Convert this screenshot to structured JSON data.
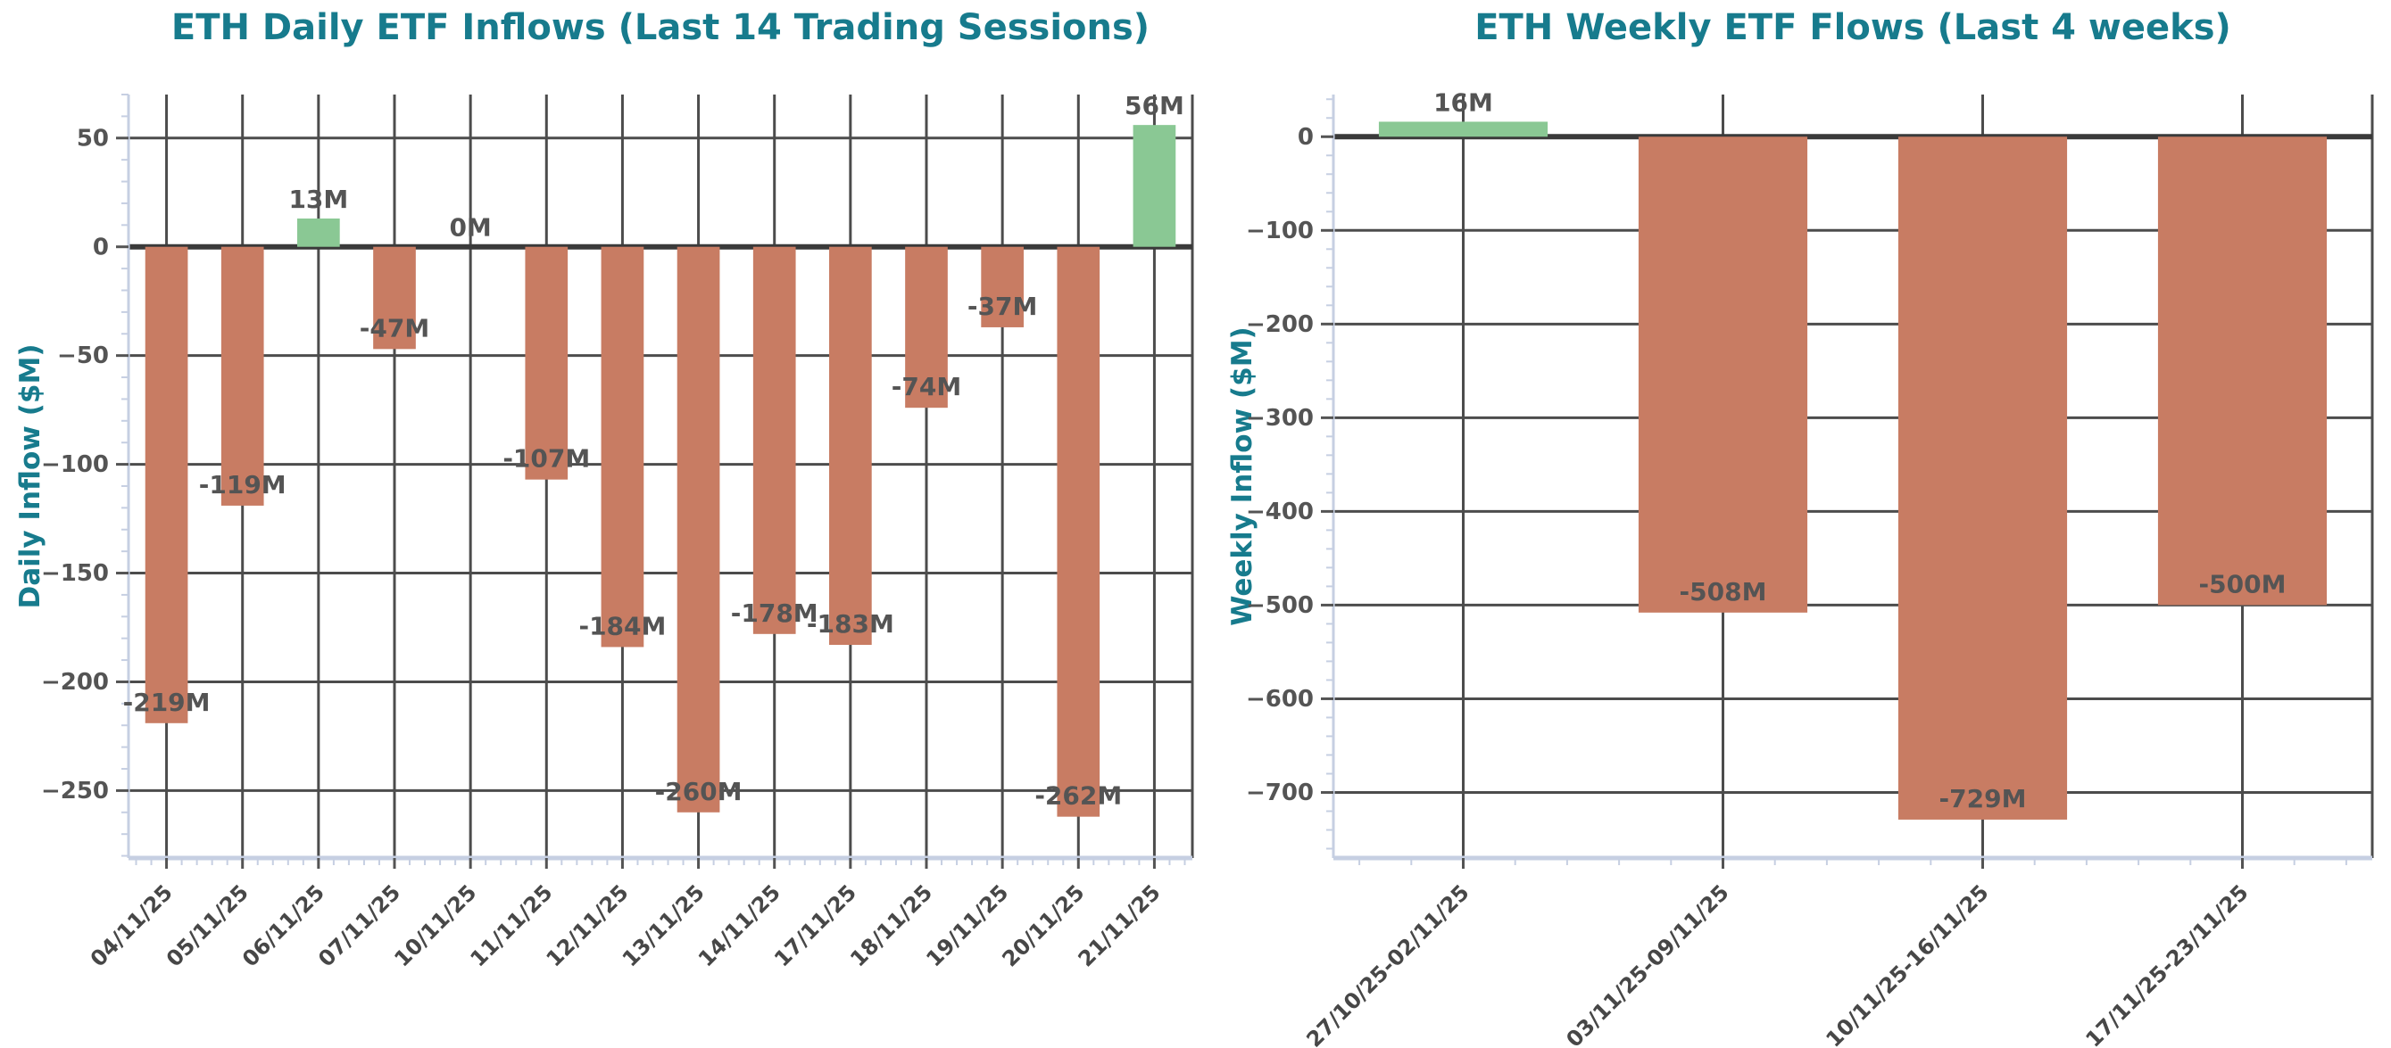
{
  "colors": {
    "background": "#ffffff",
    "title": "#177B8D",
    "axis_label": "#177B8D",
    "tick_label": "#545454",
    "data_label": "#545454",
    "x_tick_label": "#474747",
    "grid": "#4c4c4c",
    "zero_line": "#3a3a3a",
    "spine": "#c6cfe2",
    "minor_tick": "#c6cfe2",
    "positive_bar": "#8AC894",
    "negative_bar": "#C87C63"
  },
  "chart_data": [
    {
      "type": "bar",
      "title": "ETH Daily ETF Inflows (Last 14 Trading Sessions)",
      "ylabel": "Daily Inflow ($M)",
      "xlabel": "",
      "legend": "none",
      "grid": "on",
      "categories": [
        "04/11/25",
        "05/11/25",
        "06/11/25",
        "07/11/25",
        "10/11/25",
        "11/11/25",
        "12/11/25",
        "13/11/25",
        "14/11/25",
        "17/11/25",
        "18/11/25",
        "19/11/25",
        "20/11/25",
        "21/11/25"
      ],
      "values": [
        -219,
        -119,
        13,
        -47,
        0,
        -107,
        -184,
        -260,
        -178,
        -183,
        -74,
        -37,
        -262,
        56
      ],
      "bar_labels": [
        "-219M",
        "-119M",
        "13M",
        "-47M",
        "0M",
        "-107M",
        "-184M",
        "-260M",
        "-178M",
        "-183M",
        "-74M",
        "-37M",
        "-262M",
        "56M"
      ],
      "ylim": [
        70,
        -281
      ],
      "ytick_values": [
        50,
        0,
        -50,
        -100,
        -150,
        -200,
        -250
      ],
      "ytick_labels": [
        "50",
        "0",
        "−50",
        "−100",
        "−150",
        "−200",
        "−250"
      ],
      "minor_tick_step": 10
    },
    {
      "type": "bar",
      "title": "ETH Weekly ETF Flows (Last 4 weeks)",
      "ylabel": "Weekly Inflow ($M)",
      "xlabel": "",
      "legend": "none",
      "grid": "on",
      "categories": [
        "27/10/25-02/11/25",
        "03/11/25-09/11/25",
        "10/11/25-16/11/25",
        "17/11/25-23/11/25"
      ],
      "values": [
        16,
        -508,
        -729,
        -500
      ],
      "bar_labels": [
        "16M",
        "-508M",
        "-729M",
        "-500M"
      ],
      "ylim": [
        45,
        -770
      ],
      "ytick_values": [
        0,
        -100,
        -200,
        -300,
        -400,
        -500,
        -600,
        -700
      ],
      "ytick_labels": [
        "0",
        "−100",
        "−200",
        "−300",
        "−400",
        "−500",
        "−600",
        "−700"
      ],
      "minor_tick_step": 20
    }
  ]
}
